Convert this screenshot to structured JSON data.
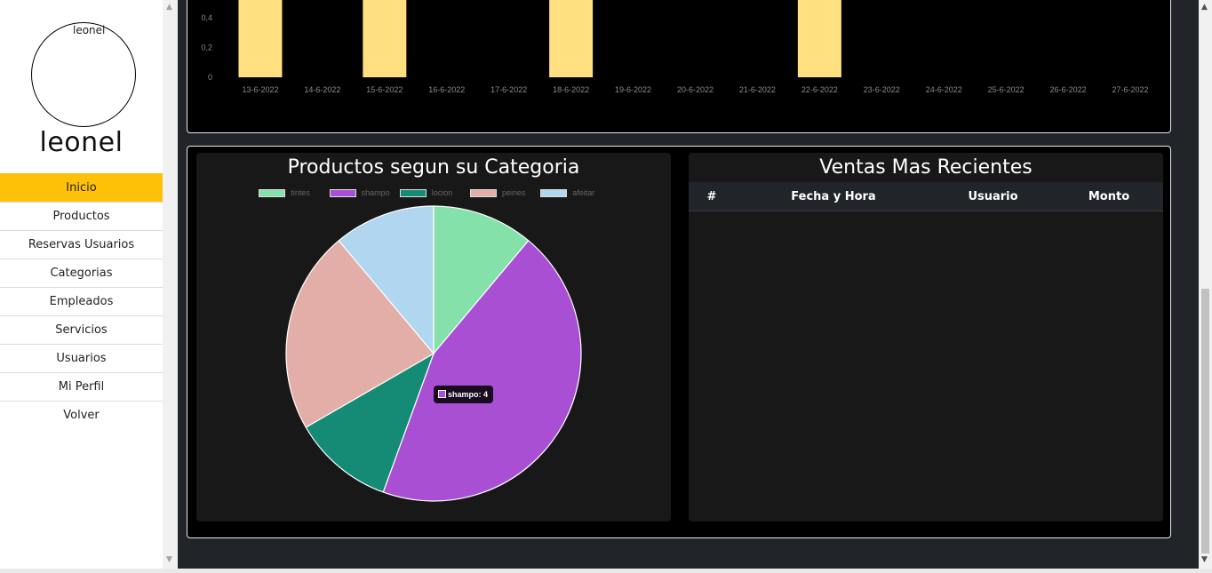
{
  "sidebar": {
    "avatar_alt": "leonel",
    "username": "leonel",
    "items": [
      {
        "label": "Inicio"
      },
      {
        "label": "Productos"
      },
      {
        "label": "Reservas Usuarios"
      },
      {
        "label": "Categorias"
      },
      {
        "label": "Empleados"
      },
      {
        "label": "Servicios"
      },
      {
        "label": "Usuarios"
      },
      {
        "label": "Mi Perfil"
      },
      {
        "label": "Volver"
      }
    ]
  },
  "pie_card": {
    "title": "Productos segun su Categoria"
  },
  "table_card": {
    "title": "Ventas Mas Recientes",
    "columns": [
      "#",
      "Fecha y Hora",
      "Usuario",
      "Monto"
    ],
    "rows": []
  },
  "tooltip": {
    "text": "shampo: 4"
  },
  "colors": {
    "active_nav": "#ffc107",
    "bar_fill": "#ffdf80"
  },
  "chart_data": [
    {
      "type": "bar",
      "categories": [
        "13-6-2022",
        "14-6-2022",
        "15-6-2022",
        "16-6-2022",
        "17-6-2022",
        "18-6-2022",
        "19-6-2022",
        "20-6-2022",
        "21-6-2022",
        "22-6-2022",
        "23-6-2022",
        "24-6-2022",
        "25-6-2022",
        "26-6-2022",
        "27-6-2022"
      ],
      "values": [
        1,
        0,
        1,
        0,
        0,
        1,
        0,
        0,
        0,
        1,
        0,
        0,
        0,
        0,
        0
      ],
      "yticks": [
        "0,4",
        "0,2",
        "0"
      ],
      "colors": [
        "#ffdf80"
      ],
      "grid": false
    },
    {
      "type": "pie",
      "labels": [
        "tintes",
        "shampo",
        "locion",
        "peines",
        "afeitar"
      ],
      "values": [
        1,
        4,
        1,
        2,
        1
      ],
      "colors": [
        "#84e1aa",
        "#a94fd3",
        "#158b75",
        "#e3aea8",
        "#b1d6f0"
      ],
      "legend": "top"
    }
  ]
}
